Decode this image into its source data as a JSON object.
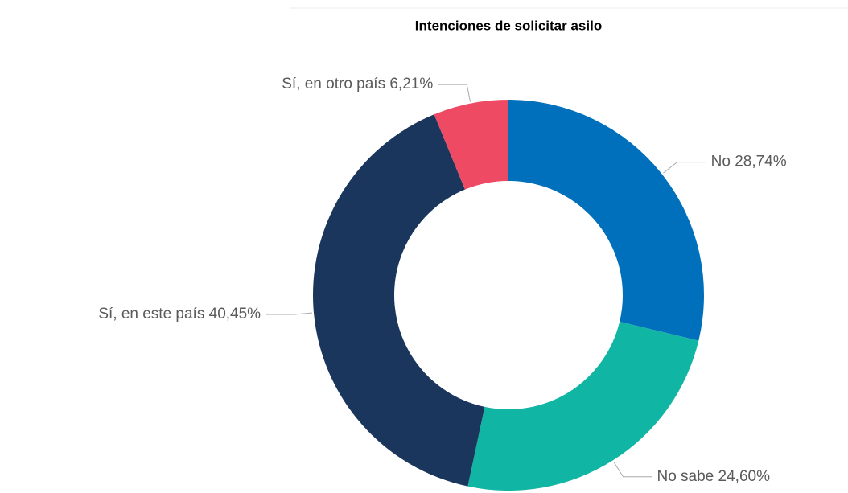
{
  "chart_data": {
    "type": "donut",
    "title": "Intenciones de solicitar asilo",
    "categories": [
      "No",
      "No sabe",
      "Sí, en este país",
      "Sí, en otro país"
    ],
    "values": [
      28.74,
      24.6,
      40.45,
      6.21
    ],
    "value_labels": [
      "28,74%",
      "24,60%",
      "40,45%",
      "6,21%"
    ],
    "colors": [
      "#0070bc",
      "#10b5a4",
      "#1a365d",
      "#ef4a63"
    ]
  }
}
